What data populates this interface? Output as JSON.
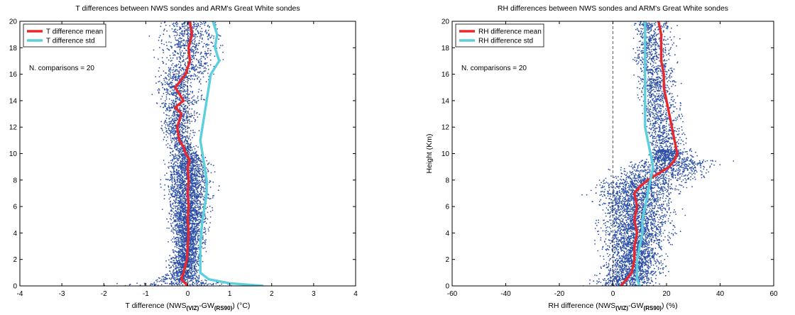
{
  "chart_data": [
    {
      "type": "scatter",
      "title": "T differences between NWS sondes and ARM's Great White sondes",
      "xlabel": {
        "base": "T difference (NWS",
        "sub1": "(VIZ)",
        "mid": "-GW",
        "sub2": "(RS90)",
        "tail": ") (°C)"
      },
      "ylabel": "",
      "xlim": [
        -4,
        4
      ],
      "ylim": [
        0,
        20
      ],
      "xticks": [
        -4,
        -3,
        -2,
        -1,
        0,
        1,
        2,
        3,
        4
      ],
      "yticks": [
        0,
        2,
        4,
        6,
        8,
        10,
        12,
        14,
        16,
        18,
        20
      ],
      "zero_line": true,
      "legend_position": "top-left",
      "annotation": "N. comparisons = 20",
      "series": [
        {
          "name": "T difference mean",
          "color": "#e8282d",
          "points": [
            [
              0.0,
              0.0
            ],
            [
              -0.15,
              0.5
            ],
            [
              -0.1,
              1.0
            ],
            [
              -0.02,
              2.0
            ],
            [
              0.0,
              3.0
            ],
            [
              0.02,
              4.0
            ],
            [
              0.0,
              5.0
            ],
            [
              0.02,
              6.0
            ],
            [
              0.0,
              7.0
            ],
            [
              0.02,
              8.0
            ],
            [
              0.0,
              9.0
            ],
            [
              0.05,
              9.5
            ],
            [
              -0.05,
              10.0
            ],
            [
              -0.1,
              10.5
            ],
            [
              -0.2,
              11.0
            ],
            [
              -0.25,
              12.0
            ],
            [
              -0.15,
              13.0
            ],
            [
              -0.3,
              13.5
            ],
            [
              -0.1,
              14.0
            ],
            [
              -0.3,
              15.0
            ],
            [
              -0.05,
              16.0
            ],
            [
              0.05,
              17.0
            ],
            [
              0.02,
              18.0
            ],
            [
              0.1,
              19.0
            ],
            [
              0.05,
              20.0
            ]
          ]
        },
        {
          "name": "T difference std",
          "color": "#5ccfde",
          "points": [
            [
              1.8,
              0.0
            ],
            [
              1.0,
              0.2
            ],
            [
              0.5,
              0.5
            ],
            [
              0.3,
              1.0
            ],
            [
              0.3,
              2.0
            ],
            [
              0.3,
              3.0
            ],
            [
              0.32,
              4.0
            ],
            [
              0.35,
              5.0
            ],
            [
              0.4,
              6.0
            ],
            [
              0.45,
              7.0
            ],
            [
              0.45,
              8.0
            ],
            [
              0.4,
              9.0
            ],
            [
              0.35,
              10.0
            ],
            [
              0.3,
              11.0
            ],
            [
              0.35,
              12.0
            ],
            [
              0.4,
              13.0
            ],
            [
              0.45,
              14.0
            ],
            [
              0.5,
              15.0
            ],
            [
              0.55,
              16.0
            ],
            [
              0.75,
              17.0
            ],
            [
              0.65,
              18.0
            ],
            [
              0.7,
              19.0
            ],
            [
              0.6,
              20.0
            ]
          ]
        }
      ],
      "scatter_color": "#2b4fa8",
      "scatter_note": "individual comparisons (blue dots)"
    },
    {
      "type": "scatter",
      "title": "RH differences between NWS sondes and ARM's Great White sondes",
      "xlabel": {
        "base": "RH difference (NWS",
        "sub1": "(VIZ)",
        "mid": "-GW",
        "sub2": "(RS90)",
        "tail": ") (%)"
      },
      "ylabel": "Height (Km)",
      "xlim": [
        -60,
        60
      ],
      "ylim": [
        0,
        20
      ],
      "xticks": [
        -60,
        -40,
        -20,
        0,
        20,
        40,
        60
      ],
      "yticks": [
        0,
        2,
        4,
        6,
        8,
        10,
        12,
        14,
        16,
        18,
        20
      ],
      "zero_line": true,
      "legend_position": "top-left",
      "annotation": "N. comparisons = 20",
      "series": [
        {
          "name": "RH difference mean",
          "color": "#e8282d",
          "points": [
            [
              3,
              0.0
            ],
            [
              5,
              0.5
            ],
            [
              7,
              1.0
            ],
            [
              8,
              2.0
            ],
            [
              8,
              3.0
            ],
            [
              9,
              4.0
            ],
            [
              8,
              5.0
            ],
            [
              9,
              6.0
            ],
            [
              8,
              7.0
            ],
            [
              10,
              7.5
            ],
            [
              13,
              8.0
            ],
            [
              17,
              8.5
            ],
            [
              21,
              9.0
            ],
            [
              23,
              9.5
            ],
            [
              24,
              10.0
            ],
            [
              23,
              11.0
            ],
            [
              22,
              12.0
            ],
            [
              21,
              13.0
            ],
            [
              20,
              14.0
            ],
            [
              19,
              15.0
            ],
            [
              19,
              16.0
            ],
            [
              18,
              17.0
            ],
            [
              18,
              18.0
            ],
            [
              18,
              19.0
            ],
            [
              17,
              20.0
            ]
          ]
        },
        {
          "name": "RH difference std",
          "color": "#5ccfde",
          "points": [
            [
              10,
              0.0
            ],
            [
              9,
              0.5
            ],
            [
              9,
              1.0
            ],
            [
              9,
              2.0
            ],
            [
              10,
              3.0
            ],
            [
              11,
              4.0
            ],
            [
              11,
              5.0
            ],
            [
              12,
              6.0
            ],
            [
              13,
              7.0
            ],
            [
              14,
              8.0
            ],
            [
              15,
              9.0
            ],
            [
              14,
              10.0
            ],
            [
              13,
              11.0
            ],
            [
              12,
              12.0
            ],
            [
              12,
              13.0
            ],
            [
              12,
              14.0
            ],
            [
              12,
              15.0
            ],
            [
              12,
              16.0
            ],
            [
              12,
              17.0
            ],
            [
              12,
              18.0
            ],
            [
              12,
              19.0
            ],
            [
              12,
              20.0
            ]
          ]
        }
      ],
      "scatter_color": "#2b4fa8",
      "scatter_note": "individual comparisons (blue dots)"
    }
  ]
}
